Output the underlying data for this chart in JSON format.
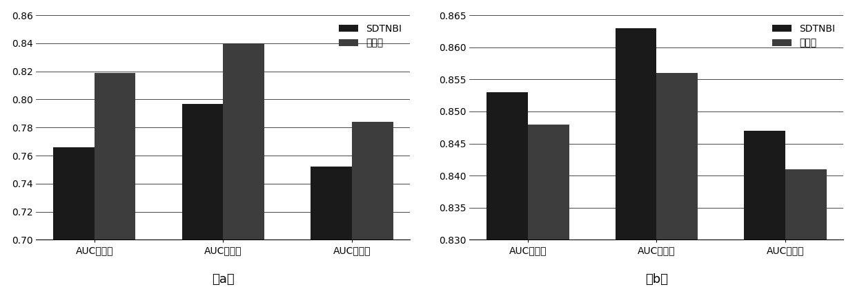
{
  "chart_a": {
    "categories": [
      "AUC平均値",
      "AUC最大値",
      "AUC最小値"
    ],
    "sdtnbi": [
      0.766,
      0.797,
      0.752
    ],
    "invention": [
      0.819,
      0.84,
      0.784
    ],
    "ylim": [
      0.7,
      0.86
    ],
    "yticks": [
      0.7,
      0.72,
      0.74,
      0.76,
      0.78,
      0.8,
      0.82,
      0.84,
      0.86
    ],
    "label": "（a）"
  },
  "chart_b": {
    "categories": [
      "AUC平均値",
      "AUC最大値",
      "AUC最小値"
    ],
    "sdtnbi": [
      0.853,
      0.863,
      0.847
    ],
    "invention": [
      0.848,
      0.856,
      0.841
    ],
    "ylim": [
      0.83,
      0.865
    ],
    "yticks": [
      0.83,
      0.835,
      0.84,
      0.845,
      0.85,
      0.855,
      0.86,
      0.865
    ],
    "label": "（b）"
  },
  "legend_labels": [
    "SDTNBI",
    "本发明"
  ],
  "bar_color_sdtnbi": "#1a1a1a",
  "bar_color_invention": "#3d3d3d",
  "bar_width": 0.32,
  "font_size": 10,
  "tick_font_size": 10,
  "label_font_size": 13,
  "background_color": "#ffffff"
}
